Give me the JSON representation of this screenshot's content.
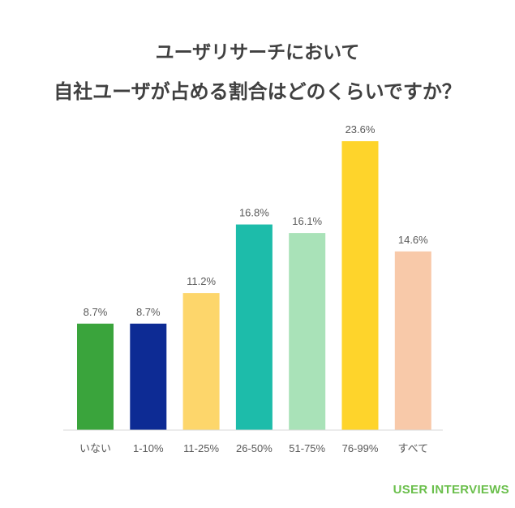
{
  "chart_data": {
    "type": "bar",
    "title_lines": [
      "ユーザリサーチにおいて",
      "自社ユーザが占める割合はどのくらいですか？"
    ],
    "categories": [
      "いない",
      "1-10%",
      "11-25%",
      "26-50%",
      "51-75%",
      "76-99%",
      "すべて"
    ],
    "values": [
      8.7,
      8.7,
      11.2,
      16.8,
      16.1,
      23.6,
      14.6
    ],
    "value_labels": [
      "8.7%",
      "8.7%",
      "11.2%",
      "16.8%",
      "16.1%",
      "23.6%",
      "14.6%"
    ],
    "colors": [
      "#3aa43c",
      "#0d2b94",
      "#fdd66b",
      "#1dbcaa",
      "#a9e2b8",
      "#fed42b",
      "#f8c9a9"
    ],
    "xlabel": "",
    "ylabel": "",
    "grid": false
  },
  "footer": {
    "brand": "USER INTERVIEWS",
    "brand_color": "#6abf4b"
  },
  "colors": {
    "title": "#404040",
    "text": "#595959",
    "axis": "#d9d9d9",
    "background": "#ffffff"
  }
}
